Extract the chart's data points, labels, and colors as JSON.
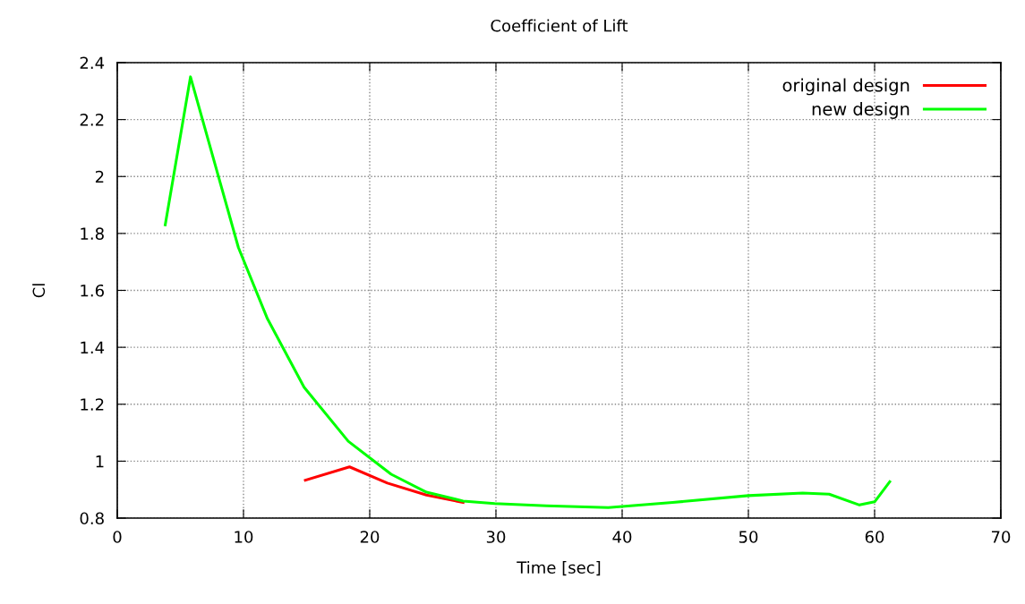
{
  "chart_data": {
    "type": "line",
    "title": "Coefficient of Lift",
    "xlabel": "Time [sec]",
    "ylabel": "Cl",
    "xlim": [
      0,
      70
    ],
    "xticks": [
      0,
      10,
      20,
      30,
      40,
      50,
      60,
      70
    ],
    "ylim": [
      0.8,
      2.4
    ],
    "yticks": [
      0.8,
      1,
      1.2,
      1.4,
      1.6,
      1.8,
      2,
      2.2,
      2.4
    ],
    "grid": true,
    "legend": "top right",
    "series": [
      {
        "name": "original design",
        "color": "#ff0000",
        "x": [
          14.9,
          18.4,
          21.4,
          24.5,
          27.4
        ],
        "values": [
          0.933,
          0.98,
          0.923,
          0.881,
          0.855
        ]
      },
      {
        "name": "new design",
        "color": "#00ff00",
        "x": [
          3.8,
          5.8,
          9.6,
          11.9,
          14.8,
          18.3,
          21.7,
          24.5,
          27.4,
          29.9,
          34,
          38.9,
          44,
          50.0,
          54.3,
          56.4,
          58.8,
          60.0,
          61.2
        ],
        "values": [
          1.83,
          2.35,
          1.75,
          1.5,
          1.26,
          1.07,
          0.954,
          0.891,
          0.86,
          0.851,
          0.843,
          0.837,
          0.855,
          0.879,
          0.888,
          0.884,
          0.846,
          0.857,
          0.928
        ]
      }
    ]
  }
}
